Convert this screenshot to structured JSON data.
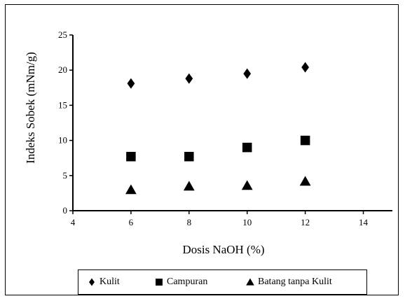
{
  "chart_data": {
    "type": "scatter",
    "title": "",
    "xlabel": "Dosis NaOH (%)",
    "ylabel": "Indeks Sobek (mNm/g)",
    "xlim": [
      4,
      15
    ],
    "ylim": [
      0,
      25
    ],
    "xticks": [
      4,
      6,
      8,
      10,
      12,
      14
    ],
    "yticks": [
      0,
      5,
      10,
      15,
      20,
      25
    ],
    "grid": false,
    "legend_position": "bottom",
    "series": [
      {
        "name": "Kulit",
        "marker": "diamond",
        "x": [
          6,
          8,
          10,
          12
        ],
        "y": [
          18.1,
          18.8,
          19.5,
          20.4
        ]
      },
      {
        "name": "Campuran",
        "marker": "square",
        "x": [
          6,
          8,
          10,
          12
        ],
        "y": [
          7.7,
          7.7,
          9.0,
          10.0
        ]
      },
      {
        "name": "Batang tanpa Kulit",
        "marker": "triangle",
        "x": [
          6,
          8,
          10,
          12
        ],
        "y": [
          3.0,
          3.5,
          3.6,
          4.2
        ]
      }
    ],
    "colors": {
      "markers": "#000000",
      "axes": "#000000",
      "background": "#ffffff"
    }
  }
}
